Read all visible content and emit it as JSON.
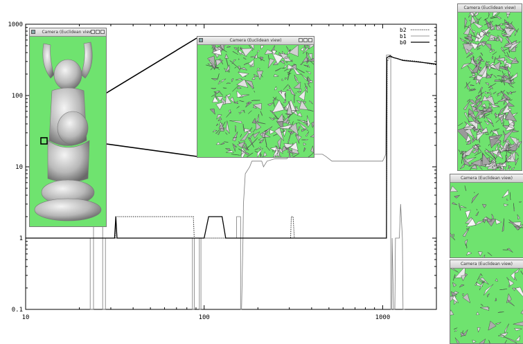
{
  "chart_data": {
    "type": "line",
    "x_scale": "log",
    "y_scale": "log",
    "xlim": [
      10,
      2000
    ],
    "ylim": [
      0.1,
      1000
    ],
    "x_ticks": [
      10,
      100,
      1000
    ],
    "x_tick_labels": [
      "10",
      "100",
      "1000"
    ],
    "y_ticks": [
      0.1,
      1,
      10,
      100,
      1000
    ],
    "y_tick_labels": [
      "0.1",
      "1",
      "10",
      "100",
      "1000"
    ],
    "legend_position": "top-right",
    "series": [
      {
        "name": "b2",
        "style": "dotted",
        "points": [
          [
            31,
            1
          ],
          [
            31.8,
            1
          ],
          [
            32,
            2
          ],
          [
            87,
            2
          ],
          [
            88,
            1
          ],
          [
            305,
            1
          ],
          [
            308,
            2
          ],
          [
            315,
            2
          ],
          [
            320,
            1
          ],
          [
            1050,
            1
          ],
          [
            1060,
            300
          ],
          [
            1100,
            350
          ],
          [
            1150,
            340
          ],
          [
            1250,
            320
          ],
          [
            1400,
            310
          ],
          [
            1600,
            300
          ],
          [
            1800,
            280
          ],
          [
            2000,
            270
          ]
        ]
      },
      {
        "name": "b1",
        "style": "thin",
        "points": [
          [
            10,
            1
          ],
          [
            23,
            1
          ],
          [
            23,
            0.1
          ],
          [
            24,
            0.1
          ],
          [
            24,
            2
          ],
          [
            27,
            2
          ],
          [
            27,
            0.1
          ],
          [
            28,
            0.1
          ],
          [
            28,
            1
          ],
          [
            86,
            1
          ],
          [
            86,
            0.1
          ],
          [
            88,
            0.1
          ],
          [
            88,
            1
          ],
          [
            94,
            1
          ],
          [
            94,
            0.1
          ],
          [
            96,
            0.1
          ],
          [
            96,
            1
          ],
          [
            152,
            1
          ],
          [
            152,
            2
          ],
          [
            160,
            2
          ],
          [
            160,
            0.1
          ],
          [
            162,
            0.1
          ],
          [
            165,
            1
          ],
          [
            166,
            3
          ],
          [
            170,
            8
          ],
          [
            180,
            10
          ],
          [
            185,
            12
          ],
          [
            210,
            12
          ],
          [
            215,
            10
          ],
          [
            225,
            12
          ],
          [
            250,
            13
          ],
          [
            290,
            13
          ],
          [
            300,
            14
          ],
          [
            360,
            14
          ],
          [
            380,
            15
          ],
          [
            460,
            15
          ],
          [
            480,
            14
          ],
          [
            520,
            12
          ],
          [
            1000,
            12
          ],
          [
            1030,
            14
          ],
          [
            1040,
            15
          ],
          [
            1050,
            370
          ],
          [
            1110,
            370
          ],
          [
            1110,
            0.1
          ],
          [
            1125,
            0.1
          ],
          [
            1130,
            1
          ],
          [
            1150,
            0.1
          ],
          [
            1170,
            0.1
          ],
          [
            1180,
            1
          ],
          [
            1240,
            1
          ],
          [
            1260,
            3
          ],
          [
            1290,
            1
          ],
          [
            1300,
            0.1
          ],
          [
            1330,
            0.1
          ]
        ]
      },
      {
        "name": "b0",
        "style": "solid",
        "points": [
          [
            10,
            1
          ],
          [
            31.5,
            1
          ],
          [
            32,
            2
          ],
          [
            32.5,
            1
          ],
          [
            100,
            1
          ],
          [
            106,
            2
          ],
          [
            126,
            2
          ],
          [
            132,
            1
          ],
          [
            1050,
            1
          ],
          [
            1055,
            340
          ],
          [
            1100,
            360
          ],
          [
            1150,
            340
          ],
          [
            1210,
            330
          ],
          [
            1300,
            310
          ],
          [
            1500,
            300
          ],
          [
            1800,
            285
          ],
          [
            2000,
            275
          ]
        ]
      }
    ]
  },
  "insets": {
    "main_window_title": "Camera (Euclidean view)",
    "zoom_window_title": "Camera (Euclidean view)",
    "right_top_title": "Camera (Euclidean view)",
    "right_mid_title": "Camera (Euclidean view)",
    "right_bot_title": "Camera (Euclidean view)",
    "background_color": "#6fe36f"
  }
}
